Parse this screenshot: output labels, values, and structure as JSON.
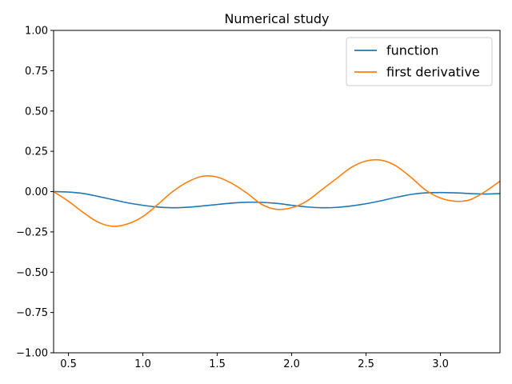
{
  "chart_data": {
    "type": "line",
    "title": "Numerical study",
    "xlabel": "",
    "ylabel": "",
    "xlim": [
      0.4,
      3.4
    ],
    "ylim": [
      -1.0,
      1.0
    ],
    "x_ticks": [
      0.5,
      1.0,
      1.5,
      2.0,
      2.5,
      3.0
    ],
    "x_tick_labels": [
      "0.5",
      "1.0",
      "1.5",
      "2.0",
      "2.5",
      "3.0"
    ],
    "y_ticks": [
      -1.0,
      -0.75,
      -0.5,
      -0.25,
      0.0,
      0.25,
      0.5,
      0.75,
      1.0
    ],
    "y_tick_labels": [
      "−1.00",
      "−0.75",
      "−0.50",
      "−0.25",
      "0.00",
      "0.25",
      "0.50",
      "0.75",
      "1.00"
    ],
    "grid": false,
    "legend_position": "top-right",
    "x": [
      0.4,
      0.5,
      0.6,
      0.7,
      0.8,
      0.9,
      1.0,
      1.1,
      1.2,
      1.3,
      1.4,
      1.5,
      1.6,
      1.7,
      1.8,
      1.9,
      2.0,
      2.1,
      2.2,
      2.3,
      2.4,
      2.5,
      2.6,
      2.7,
      2.8,
      2.9,
      3.0,
      3.1,
      3.2,
      3.3,
      3.4
    ],
    "series": [
      {
        "name": "function",
        "color": "#1f77b4",
        "values": [
          0.0,
          -0.003,
          -0.012,
          -0.03,
          -0.05,
          -0.07,
          -0.085,
          -0.096,
          -0.1,
          -0.097,
          -0.089,
          -0.08,
          -0.071,
          -0.066,
          -0.067,
          -0.073,
          -0.085,
          -0.095,
          -0.1,
          -0.098,
          -0.089,
          -0.075,
          -0.057,
          -0.036,
          -0.018,
          -0.008,
          -0.006,
          -0.008,
          -0.012,
          -0.015,
          -0.012
        ]
      },
      {
        "name": "first derivative",
        "color": "#ff7f0e",
        "values": [
          0.0,
          -0.06,
          -0.13,
          -0.19,
          -0.215,
          -0.2,
          -0.155,
          -0.08,
          0.0,
          0.06,
          0.095,
          0.09,
          0.05,
          -0.01,
          -0.08,
          -0.11,
          -0.1,
          -0.06,
          0.01,
          0.08,
          0.15,
          0.19,
          0.195,
          0.16,
          0.09,
          0.01,
          -0.04,
          -0.06,
          -0.05,
          0.0,
          0.065
        ]
      }
    ]
  }
}
